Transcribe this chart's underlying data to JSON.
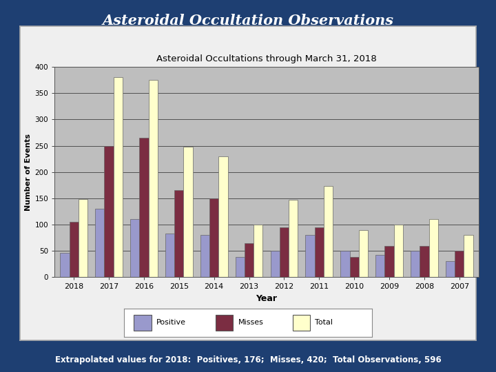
{
  "title_main": "Asteroidal Occultation Observations",
  "chart_title": "Asteroidal Occultations through March 31, 2018",
  "xlabel": "Year",
  "ylabel": "Number of Events",
  "years": [
    "2018",
    "2017",
    "2016",
    "2015",
    "2014",
    "2013",
    "2012",
    "2011",
    "2010",
    "2009",
    "2008",
    "2007"
  ],
  "positives": [
    46,
    130,
    110,
    83,
    80,
    38,
    50,
    80,
    50,
    42,
    50,
    30
  ],
  "misses": [
    105,
    250,
    265,
    165,
    150,
    65,
    95,
    95,
    38,
    60,
    60,
    50
  ],
  "totals": [
    148,
    380,
    375,
    248,
    230,
    100,
    147,
    173,
    90,
    100,
    110,
    80
  ],
  "color_positive": "#9999cc",
  "color_misses": "#7b2d42",
  "color_total": "#ffffcc",
  "bar_edge_color": "#666666",
  "background_color": "#1e3f72",
  "chart_bg_color": "#bebebe",
  "panel_bg_color": "#efefef",
  "ylim": [
    0,
    400
  ],
  "yticks": [
    0,
    50,
    100,
    150,
    200,
    250,
    300,
    350,
    400
  ],
  "footer_text": "Extrapolated values for 2018:  Positives, 176;  Misses, 420;  Total Observations, 596",
  "legend_labels": [
    "Positive",
    "Misses",
    "Total"
  ]
}
